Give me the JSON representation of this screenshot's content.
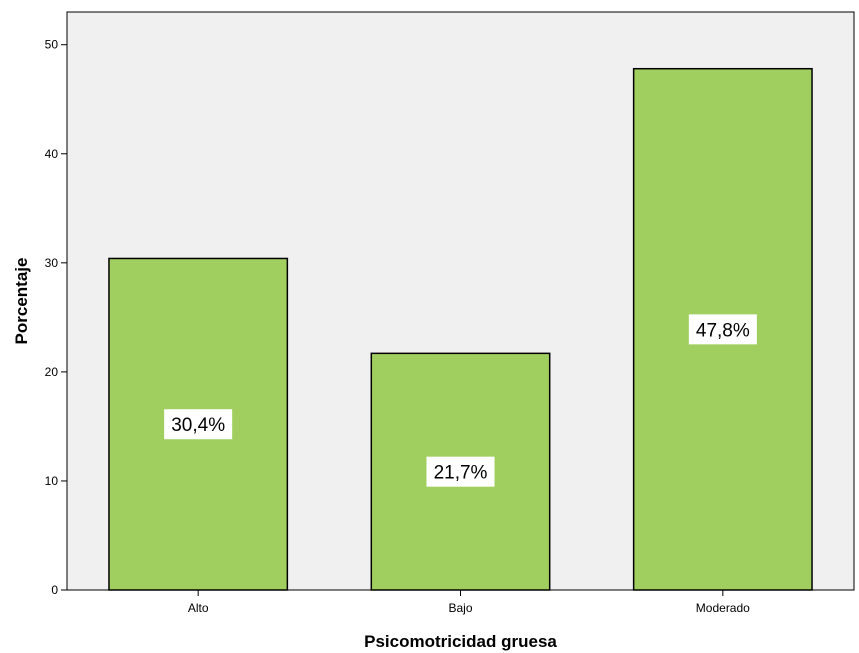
{
  "chart_data": {
    "type": "bar",
    "title": "",
    "xlabel": "Psicomotricidad gruesa",
    "ylabel": "Porcentaje",
    "categories": [
      "Alto",
      "Bajo",
      "Moderado"
    ],
    "values": [
      30.4,
      21.7,
      47.8
    ],
    "data_labels": [
      "30,4%",
      "21,7%",
      "47,8%"
    ],
    "ylim": [
      0,
      53
    ],
    "yticks": [
      0,
      10,
      20,
      30,
      40,
      50
    ],
    "ytick_labels": [
      "0",
      "10",
      "20",
      "30",
      "40",
      "50"
    ],
    "grid": false,
    "legend": "none",
    "colors": {
      "bar_fill": "#a0cf60",
      "bar_stroke": "#000000",
      "plot_background": "#f0f0f0",
      "label_background": "#ffffff"
    }
  }
}
